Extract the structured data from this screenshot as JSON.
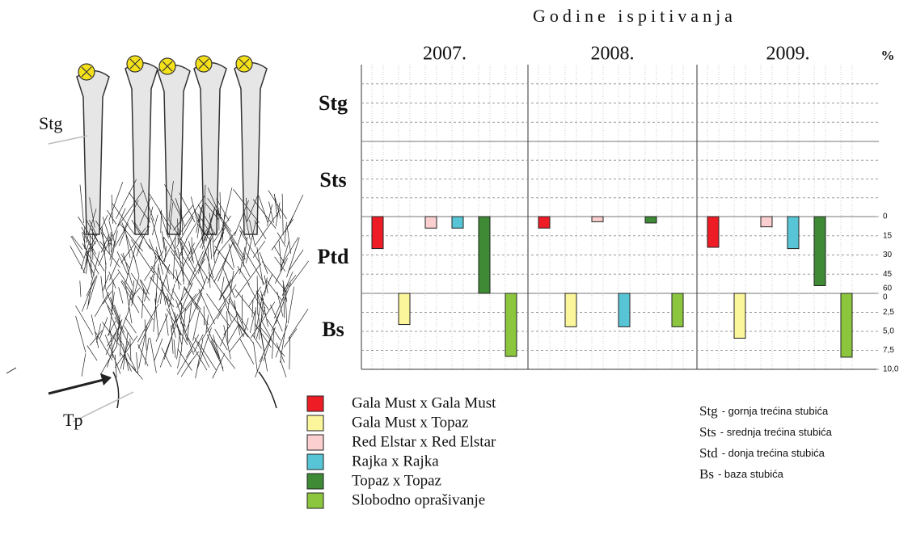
{
  "chart_data": {
    "type": "bar",
    "title": "Godine ispitivanja",
    "unit": "%",
    "categories": [
      "2007.",
      "2008.",
      "2009."
    ],
    "rows": [
      "Stg",
      "Sts",
      "Ptd",
      "Bs"
    ],
    "ptd_ylim": [
      0,
      60
    ],
    "ptd_yticks": [
      0,
      15,
      30,
      45,
      60
    ],
    "bs_ylim": [
      0,
      10
    ],
    "bs_yticks": [
      0,
      {
        "value": 2.5,
        "label": "2,5"
      },
      {
        "value": 5,
        "label": "5,0"
      },
      {
        "value": 7.5,
        "label": "7,5"
      },
      {
        "value": 10,
        "label": "10,0"
      }
    ],
    "series": [
      {
        "name": "Gala Must x Gala Must",
        "color": "#ee1c25",
        "ptd": [
          25,
          9,
          24
        ],
        "bs": [
          null,
          null,
          null
        ]
      },
      {
        "name": "Gala Must x Topaz",
        "color": "#fbf59b",
        "ptd": [
          null,
          null,
          null
        ],
        "bs": [
          4.1,
          4.4,
          5.9
        ]
      },
      {
        "name": "Red Elstar x Red Elstar",
        "color": "#fbcfcf",
        "ptd": [
          9,
          4,
          8
        ],
        "bs": [
          null,
          null,
          null
        ]
      },
      {
        "name": "Rajka x Rajka",
        "color": "#58c5d7",
        "ptd": [
          9,
          null,
          25
        ],
        "bs": [
          null,
          4.4,
          null
        ]
      },
      {
        "name": "Topaz x Topaz",
        "color": "#3e8a35",
        "ptd": [
          60,
          5,
          54
        ],
        "bs": [
          null,
          null,
          null
        ]
      },
      {
        "name": "Slobodno oprašivanje",
        "color": "#8cc63f",
        "ptd": [
          null,
          null,
          null
        ],
        "bs": [
          8.3,
          4.4,
          8.4
        ]
      }
    ],
    "abbreviations": [
      {
        "abbr": "Stg",
        "text": "- gornja trećina stubića"
      },
      {
        "abbr": "Sts",
        "text": "- srednja trećina stubića"
      },
      {
        "abbr": "Std",
        "text": "- donja trećina stubića"
      },
      {
        "abbr": "Bs",
        "text": "- baza stubića"
      }
    ]
  },
  "illustration": {
    "labels": [
      "Stg",
      "Tp"
    ]
  }
}
